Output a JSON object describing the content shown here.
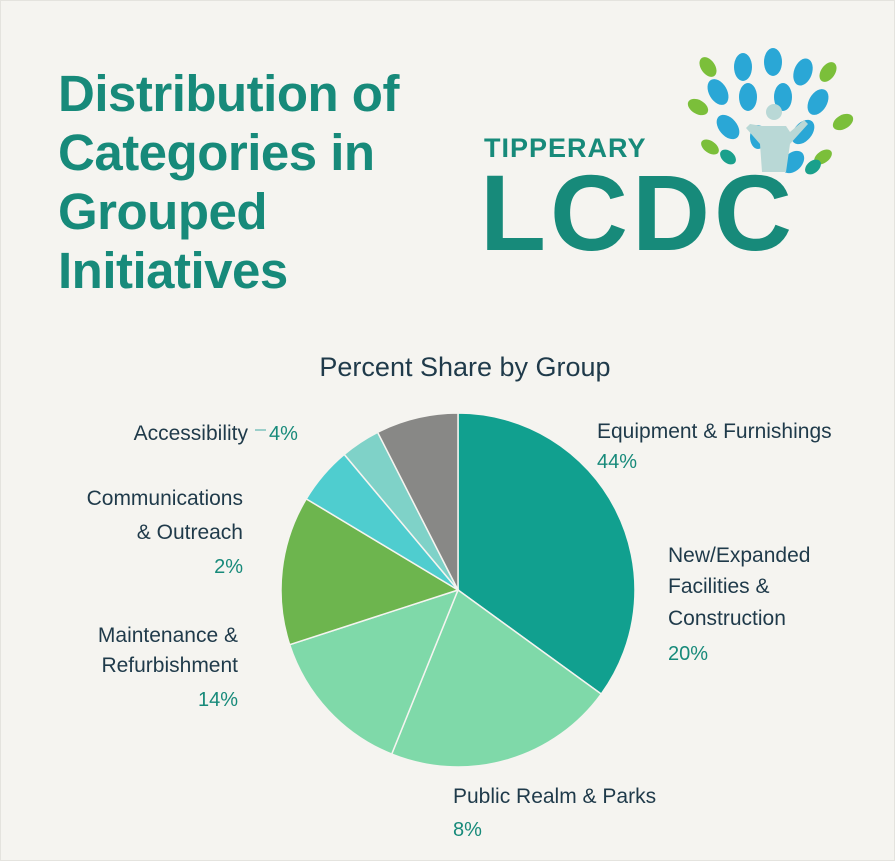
{
  "header": {
    "title_lines": [
      "Distribution of",
      "Categories in",
      "Grouped",
      "Initiatives"
    ]
  },
  "logo": {
    "name": "TIPPERARY",
    "wordmark": "LCDC",
    "icon": "tree-person-icon"
  },
  "colors": {
    "title": "#178a7a",
    "text": "#1f3a4a"
  },
  "chart_data": {
    "type": "pie",
    "title": "Percent Share by Group",
    "slices": [
      {
        "label_lines": [
          "Equipment & Furnishings"
        ],
        "value_label": "44%",
        "value": 44,
        "color": "#11a08f"
      },
      {
        "label_lines": [
          "New/Expanded",
          "Facilities &",
          "Construction"
        ],
        "value_label": "20%",
        "value": 20,
        "color": "#7fd9a9"
      },
      {
        "label_lines": [
          "Public Realm & Parks"
        ],
        "value_label": "8%",
        "value": 8,
        "color": "#7fd9a9"
      },
      {
        "label_lines": [
          "Maintenance &",
          "Refurbishment"
        ],
        "value_label": "14%",
        "value": 14,
        "color": "#6db54e"
      },
      {
        "label_lines": [
          "Communications",
          "& Outreach"
        ],
        "value_label": "2%",
        "value": 2,
        "color": "#4fcdcf"
      },
      {
        "label_lines": [
          "Accessibility"
        ],
        "value_label": "4%",
        "value": 4,
        "color": "#7fd2c8"
      }
    ],
    "legend": "none"
  }
}
